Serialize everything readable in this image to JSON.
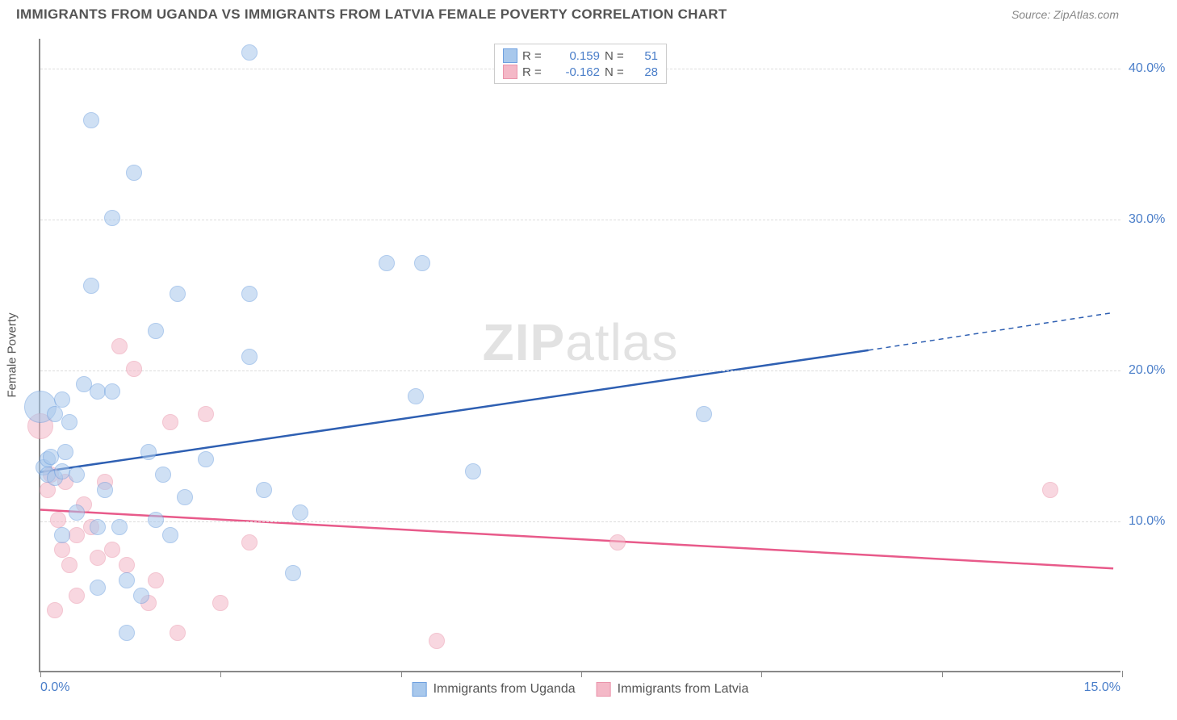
{
  "header": {
    "title": "IMMIGRANTS FROM UGANDA VS IMMIGRANTS FROM LATVIA FEMALE POVERTY CORRELATION CHART",
    "source": "Source: ZipAtlas.com"
  },
  "chart": {
    "type": "scatter",
    "y_label": "Female Poverty",
    "watermark": "ZIPatlas",
    "background_color": "#ffffff",
    "grid_color": "#dddddd",
    "axis_color": "#888888",
    "tick_label_color": "#4a7ec9",
    "xlim": [
      0.0,
      15.0
    ],
    "ylim": [
      0.0,
      42.0
    ],
    "y_ticks": [
      10.0,
      20.0,
      30.0,
      40.0
    ],
    "y_tick_labels": [
      "10.0%",
      "20.0%",
      "30.0%",
      "40.0%"
    ],
    "x_ticks": [
      0,
      2.5,
      5.0,
      7.5,
      10.0,
      12.5,
      15.0
    ],
    "x_tick_labels": {
      "left": "0.0%",
      "right": "15.0%"
    },
    "series": [
      {
        "name": "Immigrants from Uganda",
        "fill_color": "#a8c8ec",
        "fill_opacity": 0.55,
        "stroke_color": "#6ea0df",
        "trend_color": "#2e5fb2",
        "trend_width": 2.5,
        "r_value": "0.159",
        "n_value": "51",
        "marker_radius": 10,
        "trend": {
          "x0": 0.0,
          "y0": 13.2,
          "x1_solid": 11.5,
          "y1_solid": 21.3,
          "x1": 14.9,
          "y1": 23.8
        },
        "points": [
          {
            "x": 0.0,
            "y": 17.5,
            "r": 20
          },
          {
            "x": 0.05,
            "y": 13.5
          },
          {
            "x": 0.1,
            "y": 14.0
          },
          {
            "x": 0.1,
            "y": 13.0
          },
          {
            "x": 0.15,
            "y": 14.2
          },
          {
            "x": 0.2,
            "y": 12.8
          },
          {
            "x": 0.2,
            "y": 17.0
          },
          {
            "x": 0.3,
            "y": 18.0
          },
          {
            "x": 0.3,
            "y": 13.2
          },
          {
            "x": 0.3,
            "y": 9.0
          },
          {
            "x": 0.35,
            "y": 14.5
          },
          {
            "x": 0.4,
            "y": 16.5
          },
          {
            "x": 0.5,
            "y": 13.0
          },
          {
            "x": 0.5,
            "y": 10.5
          },
          {
            "x": 0.6,
            "y": 19.0
          },
          {
            "x": 0.7,
            "y": 36.5
          },
          {
            "x": 0.7,
            "y": 25.5
          },
          {
            "x": 0.8,
            "y": 18.5
          },
          {
            "x": 0.8,
            "y": 9.5
          },
          {
            "x": 0.8,
            "y": 5.5
          },
          {
            "x": 0.9,
            "y": 12.0
          },
          {
            "x": 1.0,
            "y": 30.0
          },
          {
            "x": 1.0,
            "y": 18.5
          },
          {
            "x": 1.1,
            "y": 9.5
          },
          {
            "x": 1.2,
            "y": 6.0
          },
          {
            "x": 1.2,
            "y": 2.5
          },
          {
            "x": 1.3,
            "y": 33.0
          },
          {
            "x": 1.4,
            "y": 5.0
          },
          {
            "x": 1.5,
            "y": 14.5
          },
          {
            "x": 1.6,
            "y": 22.5
          },
          {
            "x": 1.6,
            "y": 10.0
          },
          {
            "x": 1.7,
            "y": 13.0
          },
          {
            "x": 1.8,
            "y": 9.0
          },
          {
            "x": 1.9,
            "y": 25.0
          },
          {
            "x": 2.0,
            "y": 11.5
          },
          {
            "x": 2.3,
            "y": 14.0
          },
          {
            "x": 2.9,
            "y": 41.0
          },
          {
            "x": 2.9,
            "y": 25.0
          },
          {
            "x": 2.9,
            "y": 20.8
          },
          {
            "x": 3.1,
            "y": 12.0
          },
          {
            "x": 3.5,
            "y": 6.5
          },
          {
            "x": 3.6,
            "y": 10.5
          },
          {
            "x": 4.8,
            "y": 27.0
          },
          {
            "x": 5.2,
            "y": 18.2
          },
          {
            "x": 5.3,
            "y": 27.0
          },
          {
            "x": 6.0,
            "y": 13.2
          },
          {
            "x": 9.2,
            "y": 17.0
          }
        ]
      },
      {
        "name": "Immigrants from Latvia",
        "fill_color": "#f4b8c7",
        "fill_opacity": 0.55,
        "stroke_color": "#ea94ab",
        "trend_color": "#e85a8a",
        "trend_width": 2.5,
        "r_value": "-0.162",
        "n_value": "28",
        "marker_radius": 10,
        "trend": {
          "x0": 0.0,
          "y0": 10.7,
          "x1_solid": 14.9,
          "y1_solid": 6.8,
          "x1": 14.9,
          "y1": 6.8
        },
        "points": [
          {
            "x": 0.0,
            "y": 16.2,
            "r": 16
          },
          {
            "x": 0.1,
            "y": 12.0
          },
          {
            "x": 0.15,
            "y": 13.0
          },
          {
            "x": 0.2,
            "y": 4.0
          },
          {
            "x": 0.25,
            "y": 10.0
          },
          {
            "x": 0.3,
            "y": 8.0
          },
          {
            "x": 0.35,
            "y": 12.5
          },
          {
            "x": 0.4,
            "y": 7.0
          },
          {
            "x": 0.5,
            "y": 9.0
          },
          {
            "x": 0.5,
            "y": 5.0
          },
          {
            "x": 0.6,
            "y": 11.0
          },
          {
            "x": 0.7,
            "y": 9.5
          },
          {
            "x": 0.8,
            "y": 7.5
          },
          {
            "x": 0.9,
            "y": 12.5
          },
          {
            "x": 1.0,
            "y": 8.0
          },
          {
            "x": 1.1,
            "y": 21.5
          },
          {
            "x": 1.2,
            "y": 7.0
          },
          {
            "x": 1.3,
            "y": 20.0
          },
          {
            "x": 1.5,
            "y": 4.5
          },
          {
            "x": 1.6,
            "y": 6.0
          },
          {
            "x": 1.8,
            "y": 16.5
          },
          {
            "x": 1.9,
            "y": 2.5
          },
          {
            "x": 2.3,
            "y": 17.0
          },
          {
            "x": 2.5,
            "y": 4.5
          },
          {
            "x": 2.9,
            "y": 8.5
          },
          {
            "x": 5.5,
            "y": 2.0
          },
          {
            "x": 8.0,
            "y": 8.5
          },
          {
            "x": 14.0,
            "y": 12.0
          }
        ]
      }
    ]
  }
}
